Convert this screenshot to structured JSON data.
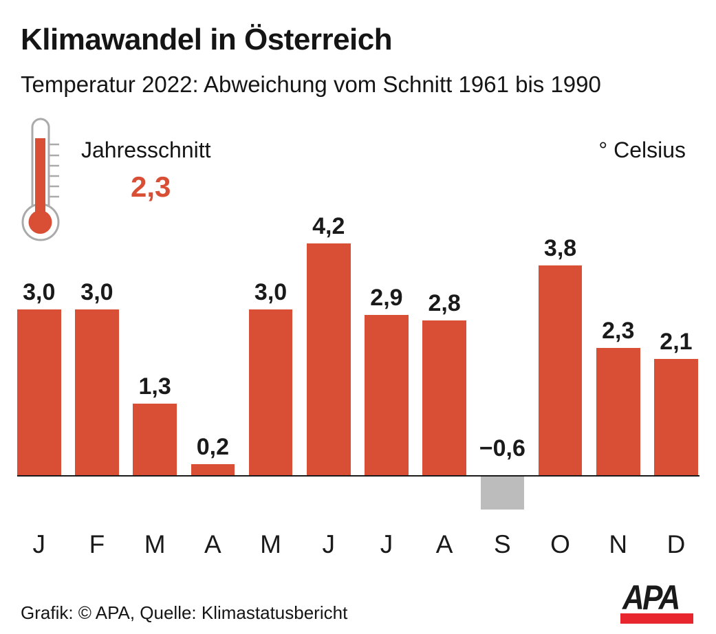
{
  "header": {
    "title": "Klimawandel in Österreich",
    "subtitle": "Temperatur 2022: Abweichung vom Schnitt 1961 bis 1990"
  },
  "legend": {
    "annual_label": "Jahresschnitt",
    "annual_value": "2,3",
    "unit_label": "° Celsius"
  },
  "icons": {
    "thermometer": "thermometer-icon"
  },
  "chart_data": {
    "type": "bar",
    "title": "Klimawandel in Österreich",
    "subtitle": "Temperatur 2022: Abweichung vom Schnitt 1961 bis 1990",
    "unit": "° Celsius",
    "annual_mean": 2.3,
    "categories": [
      "J",
      "F",
      "M",
      "A",
      "M",
      "J",
      "J",
      "A",
      "S",
      "O",
      "N",
      "D"
    ],
    "values": [
      3.0,
      3.0,
      1.3,
      0.2,
      3.0,
      4.2,
      2.9,
      2.8,
      -0.6,
      3.8,
      2.3,
      2.1
    ],
    "value_labels": [
      "3,0",
      "3,0",
      "1,3",
      "0,2",
      "3,0",
      "4,2",
      "2,9",
      "2,8",
      "−0,6",
      "3,8",
      "2,3",
      "2,1"
    ],
    "xlabel": "",
    "ylabel": "° Celsius",
    "ylim": [
      -1,
      4.5
    ],
    "grid": false,
    "legend_position": "none",
    "bar_color_positive": "#d84f35",
    "bar_color_negative": "#bcbcbc",
    "axis_color": "#1a1a1a"
  },
  "footer": {
    "credit": "Grafik: © APA, Quelle: Klimastatusbericht",
    "logo_text": "APA",
    "logo_bar_color": "#e8262e"
  }
}
